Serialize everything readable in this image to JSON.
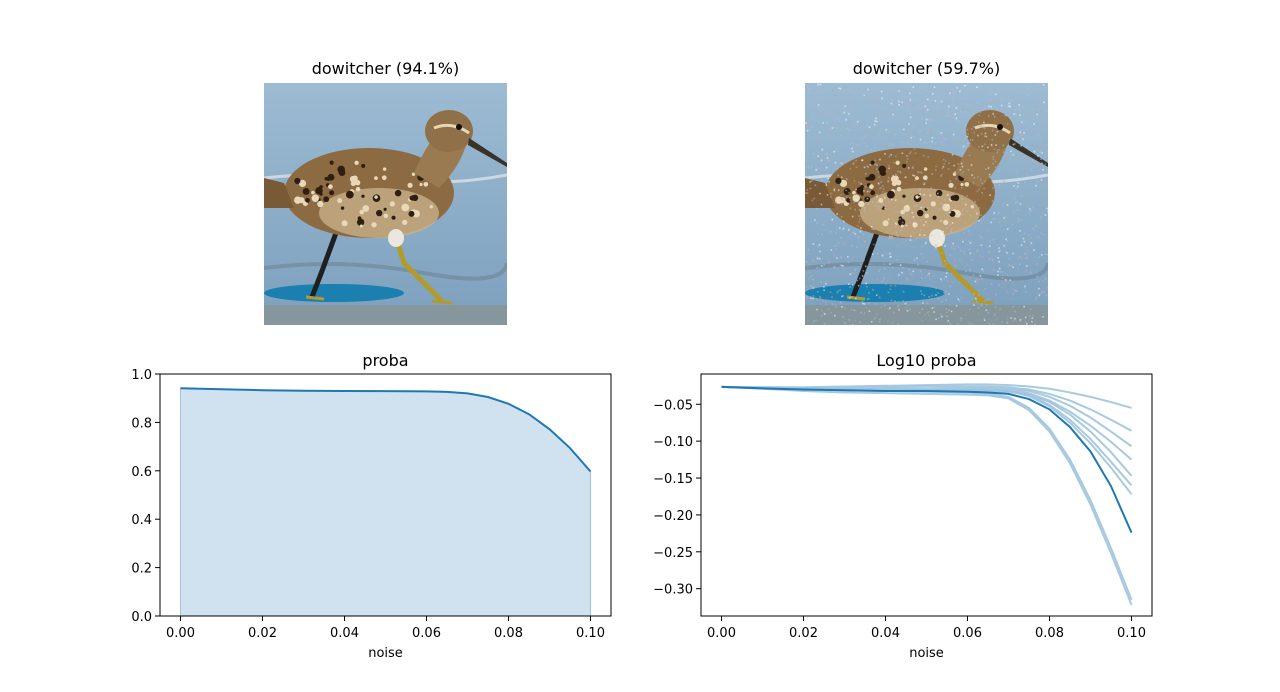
{
  "images": [
    {
      "title": "dowitcher (94.1%)",
      "subject": "shorebird wading in shallow water",
      "noisy": false
    },
    {
      "title": "dowitcher (59.7%)",
      "subject": "shorebird wading in shallow water with added pixel noise",
      "noisy": true
    }
  ],
  "colors": {
    "line": "#1f77b4",
    "fill": "#d0e2ef",
    "light_line": "#9ec4de",
    "water_top": "#9dbbd3",
    "water_bottom": "#7da0bd"
  },
  "chart_data": [
    {
      "type": "area",
      "title": "proba",
      "xlabel": "noise",
      "ylabel": "",
      "xlim": [
        -0.005,
        0.105
      ],
      "ylim": [
        0.0,
        1.0
      ],
      "xticks": [
        "0.00",
        "0.02",
        "0.04",
        "0.06",
        "0.08",
        "0.10"
      ],
      "yticks": [
        "0.0",
        "0.2",
        "0.4",
        "0.6",
        "0.8",
        "1.0"
      ],
      "grid": false,
      "series": [
        {
          "x": [
            0.0,
            0.01,
            0.02,
            0.03,
            0.04,
            0.05,
            0.06,
            0.065,
            0.07,
            0.075,
            0.08,
            0.085,
            0.09,
            0.095,
            0.1
          ],
          "values": [
            0.941,
            0.937,
            0.933,
            0.931,
            0.93,
            0.929,
            0.928,
            0.926,
            0.92,
            0.905,
            0.877,
            0.834,
            0.772,
            0.694,
            0.597
          ]
        }
      ]
    },
    {
      "type": "line",
      "title": "Log10 proba",
      "xlabel": "noise",
      "ylabel": "",
      "xlim": [
        -0.005,
        0.105
      ],
      "ylim": [
        -0.337,
        -0.009
      ],
      "xticks": [
        "0.00",
        "0.02",
        "0.04",
        "0.06",
        "0.08",
        "0.10"
      ],
      "yticks": [
        "−0.05",
        "−0.10",
        "−0.15",
        "−0.20",
        "−0.25",
        "−0.30"
      ],
      "grid": false,
      "x": [
        0.0,
        0.01,
        0.02,
        0.03,
        0.04,
        0.05,
        0.06,
        0.065,
        0.07,
        0.075,
        0.08,
        0.085,
        0.09,
        0.095,
        0.1
      ],
      "series": [
        {
          "values": [
            -0.0265,
            -0.0285,
            -0.03,
            -0.031,
            -0.032,
            -0.032,
            -0.033,
            -0.034,
            -0.036,
            -0.043,
            -0.057,
            -0.081,
            -0.114,
            -0.161,
            -0.224
          ],
          "emphasis": true
        },
        {
          "values": [
            -0.0265,
            -0.028,
            -0.03,
            -0.031,
            -0.032,
            -0.033,
            -0.034,
            -0.036,
            -0.04,
            -0.055,
            -0.083,
            -0.125,
            -0.18,
            -0.245,
            -0.315
          ]
        },
        {
          "values": [
            -0.0265,
            -0.029,
            -0.032,
            -0.034,
            -0.035,
            -0.036,
            -0.037,
            -0.038,
            -0.042,
            -0.058,
            -0.087,
            -0.13,
            -0.186,
            -0.252,
            -0.322
          ]
        },
        {
          "values": [
            -0.0265,
            -0.027,
            -0.027,
            -0.026,
            -0.025,
            -0.024,
            -0.023,
            -0.023,
            -0.024,
            -0.026,
            -0.029,
            -0.034,
            -0.04,
            -0.047,
            -0.055
          ]
        },
        {
          "values": [
            -0.0265,
            -0.027,
            -0.028,
            -0.028,
            -0.027,
            -0.026,
            -0.026,
            -0.026,
            -0.027,
            -0.03,
            -0.036,
            -0.045,
            -0.057,
            -0.071,
            -0.086
          ]
        },
        {
          "values": [
            -0.0265,
            -0.028,
            -0.029,
            -0.029,
            -0.029,
            -0.029,
            -0.028,
            -0.028,
            -0.029,
            -0.032,
            -0.04,
            -0.052,
            -0.068,
            -0.087,
            -0.107
          ]
        },
        {
          "values": [
            -0.0265,
            -0.028,
            -0.029,
            -0.03,
            -0.03,
            -0.03,
            -0.03,
            -0.03,
            -0.031,
            -0.035,
            -0.045,
            -0.06,
            -0.079,
            -0.101,
            -0.125
          ]
        },
        {
          "values": [
            -0.0265,
            -0.028,
            -0.03,
            -0.031,
            -0.031,
            -0.031,
            -0.031,
            -0.031,
            -0.032,
            -0.038,
            -0.051,
            -0.071,
            -0.097,
            -0.128,
            -0.16
          ]
        },
        {
          "values": [
            -0.0265,
            -0.028,
            -0.029,
            -0.03,
            -0.03,
            -0.03,
            -0.03,
            -0.031,
            -0.032,
            -0.039,
            -0.053,
            -0.075,
            -0.103,
            -0.136,
            -0.172
          ]
        },
        {
          "values": [
            -0.0265,
            -0.028,
            -0.029,
            -0.03,
            -0.031,
            -0.031,
            -0.032,
            -0.032,
            -0.033,
            -0.037,
            -0.047,
            -0.064,
            -0.087,
            -0.115,
            -0.147
          ]
        }
      ]
    }
  ]
}
